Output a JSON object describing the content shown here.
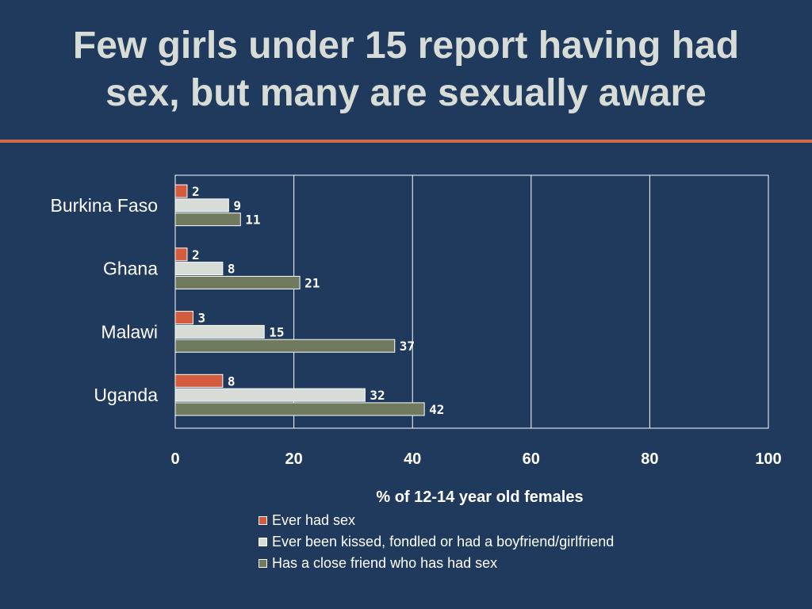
{
  "page": {
    "title_lines": [
      "Few girls under 15 report having had",
      "sex, but many are sexually aware"
    ],
    "background": "#1f3a5c",
    "title_color": "#d7dcd7",
    "rule_color": "#d2694a"
  },
  "chart_data": {
    "type": "bar",
    "orientation": "horizontal",
    "categories": [
      "Burkina Faso",
      "Ghana",
      "Malawi",
      "Uganda"
    ],
    "series": [
      {
        "name": "Ever had sex",
        "color": "#d35b3e",
        "values": [
          2,
          2,
          3,
          8
        ]
      },
      {
        "name": "Ever been kissed, fondled or had a boyfriend/girlfriend",
        "color": "#d7dcd7",
        "values": [
          9,
          8,
          15,
          32
        ]
      },
      {
        "name": "Has a close friend who has had sex",
        "color": "#707a5f",
        "values": [
          11,
          21,
          37,
          42
        ]
      }
    ],
    "xlabel": "% of 12-14 year old females",
    "xlim": [
      0,
      100
    ],
    "xticks": [
      0,
      20,
      40,
      60,
      80,
      100
    ],
    "grid": "vertical",
    "legend_position": "bottom"
  }
}
